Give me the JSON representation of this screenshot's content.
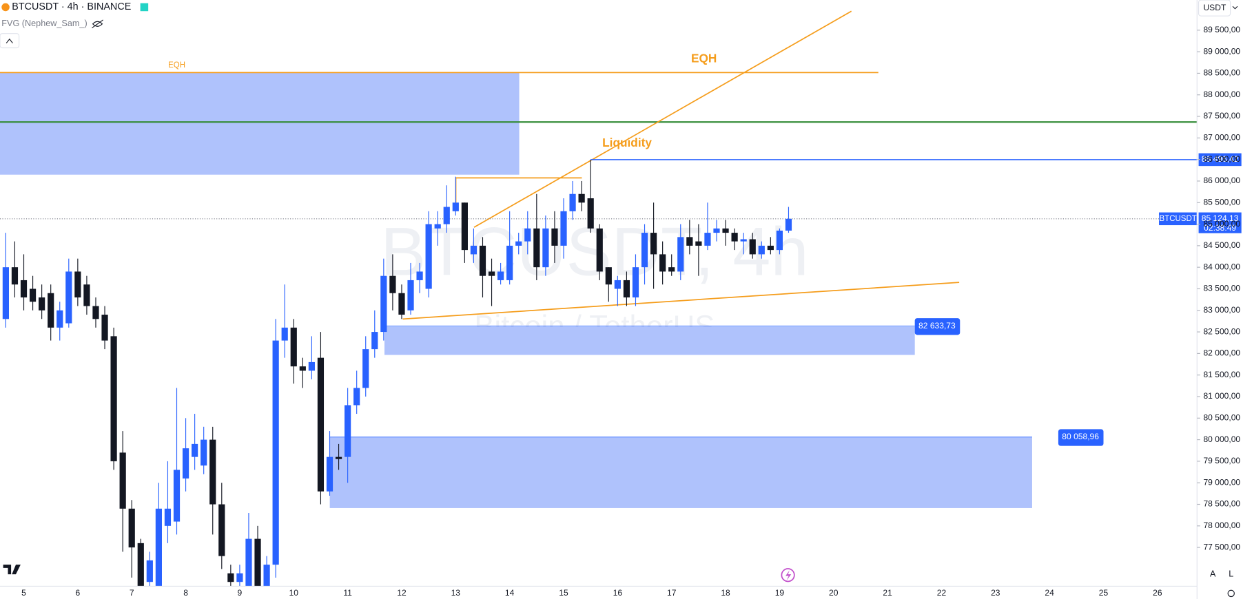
{
  "header": {
    "symbol": "BTCUSDT · 4h · BINANCE",
    "indicator": "FVG (Nephew_Sam_)",
    "currency": "USDT"
  },
  "watermark": {
    "main": "BTCUSDT, 4h",
    "sub": "Bitcoin / TetherUS"
  },
  "annotations": {
    "eqh_small": "EQH",
    "eqh": "EQH",
    "liquidity": "Liquidity"
  },
  "price_labels": [
    {
      "value": 86496.42,
      "label": "86 496,42"
    },
    {
      "value": 82633.73,
      "label": "82 633,73"
    },
    {
      "value": 80058.96,
      "label": "80 058,96"
    }
  ],
  "current_price": {
    "symbol": "BTCUSDT",
    "price": {
      "value": 85124.13,
      "label": "85 124,13"
    },
    "countdown": "02:38:49"
  },
  "scale_buttons": [
    "A",
    "L"
  ],
  "chart_data": {
    "type": "candlestick",
    "up_color": "#2962ff",
    "down_color": "#131722",
    "dates": [
      "5",
      "6",
      "7",
      "8",
      "9",
      "10",
      "11",
      "12",
      "13",
      "14",
      "15",
      "16",
      "17",
      "18",
      "19",
      "20",
      "21",
      "22",
      "23",
      "24",
      "25",
      "26"
    ],
    "open": [
      82800,
      84000,
      83700,
      83500,
      83300,
      83400,
      82600,
      82700,
      83900,
      83600,
      83100,
      82900,
      82400,
      79700,
      78400,
      77600,
      76700,
      76500,
      78000,
      78100,
      79100,
      79600,
      79400,
      80000,
      78500,
      76900,
      76700,
      76400,
      77700,
      76500,
      77100,
      82300,
      82600,
      81700,
      81600,
      81900,
      78800,
      79600,
      79600,
      80800,
      81200,
      82100,
      82500,
      83800,
      83400,
      83000,
      83700,
      83500,
      84900,
      85000,
      85300,
      85500,
      84300,
      84500,
      83900,
      83700,
      83700,
      84500,
      84600,
      84900,
      84000,
      84900,
      84500,
      85300,
      85700,
      85600,
      84900,
      84000,
      83500,
      83700,
      83300,
      84000,
      84800,
      84300,
      84000,
      83900,
      84700,
      84600,
      84500,
      84800,
      84900,
      84800,
      84600,
      84650,
      84300,
      84500,
      84400,
      84850
    ],
    "high": [
      84800,
      84600,
      84300,
      83800,
      83600,
      83600,
      83200,
      84200,
      84200,
      83800,
      83300,
      83100,
      82600,
      80200,
      78600,
      77700,
      77400,
      79000,
      79500,
      81200,
      80500,
      80600,
      80300,
      80300,
      79000,
      77100,
      77100,
      78300,
      78000,
      77300,
      82800,
      83600,
      82800,
      81900,
      82400,
      82500,
      80200,
      79900,
      81200,
      81600,
      82400,
      83000,
      84200,
      84300,
      83600,
      84100,
      84100,
      85300,
      85300,
      85900,
      86100,
      85500,
      84900,
      84700,
      84200,
      84100,
      85300,
      84800,
      85300,
      85700,
      85200,
      85300,
      85600,
      86000,
      86000,
      86496,
      85000,
      84000,
      83800,
      83900,
      84300,
      85000,
      85500,
      84600,
      84300,
      85000,
      85100,
      85000,
      85500,
      85100,
      85100,
      84900,
      84800,
      84800,
      84600,
      84700,
      84900,
      85400
    ],
    "low": [
      82600,
      83300,
      83000,
      83000,
      82800,
      82300,
      82300,
      82600,
      83100,
      82900,
      82600,
      82100,
      79300,
      77400,
      76800,
      76500,
      76500,
      76300,
      77600,
      77800,
      78800,
      79300,
      79200,
      77800,
      77000,
      76500,
      76500,
      76300,
      76400,
      76400,
      76800,
      81900,
      81300,
      81200,
      81400,
      78500,
      78700,
      79300,
      79000,
      80600,
      81000,
      81900,
      82300,
      83000,
      82800,
      82900,
      83400,
      83300,
      84500,
      84800,
      85200,
      84100,
      84100,
      83300,
      83100,
      83600,
      83600,
      84300,
      84300,
      83700,
      83800,
      84100,
      84200,
      85100,
      85300,
      84800,
      83700,
      83200,
      83100,
      83100,
      83100,
      83600,
      83500,
      83600,
      83800,
      83700,
      84300,
      83800,
      84400,
      84600,
      84500,
      84400,
      84300,
      84200,
      84200,
      84300,
      84300,
      84800
    ],
    "close": [
      84000,
      83600,
      83300,
      83200,
      83000,
      82600,
      83000,
      83900,
      83300,
      83100,
      82800,
      82300,
      79500,
      78400,
      77500,
      76600,
      77200,
      78400,
      78400,
      79300,
      79800,
      79900,
      80000,
      78500,
      77300,
      76700,
      76900,
      77700,
      76500,
      77100,
      82300,
      82600,
      81700,
      81600,
      81800,
      78800,
      79600,
      79550,
      80800,
      81200,
      82100,
      82500,
      83800,
      83400,
      82900,
      83700,
      83900,
      85000,
      85000,
      85400,
      85500,
      84400,
      84500,
      83800,
      83800,
      83900,
      84500,
      84600,
      84900,
      84000,
      84900,
      84500,
      85300,
      85700,
      85500,
      84900,
      83900,
      83600,
      83700,
      83300,
      84000,
      84800,
      84300,
      83900,
      83900,
      84700,
      84500,
      84500,
      84800,
      84900,
      84800,
      84600,
      84650,
      84300,
      84500,
      84400,
      84850,
      85124.13
    ],
    "ylim": [
      76600,
      90200
    ],
    "yticks": [
      {
        "value": 77500,
        "label": "77 500,00"
      },
      {
        "value": 78000,
        "label": "78 000,00"
      },
      {
        "value": 78500,
        "label": "78 500,00"
      },
      {
        "value": 79000,
        "label": "79 000,00"
      },
      {
        "value": 79500,
        "label": "79 500,00"
      },
      {
        "value": 80000,
        "label": "80 000,00"
      },
      {
        "value": 80500,
        "label": "80 500,00"
      },
      {
        "value": 81000,
        "label": "81 000,00"
      },
      {
        "value": 81500,
        "label": "81 500,00"
      },
      {
        "value": 82000,
        "label": "82 000,00"
      },
      {
        "value": 82500,
        "label": "82 500,00"
      },
      {
        "value": 83000,
        "label": "83 000,00"
      },
      {
        "value": 83500,
        "label": "83 500,00"
      },
      {
        "value": 84000,
        "label": "84 000,00"
      },
      {
        "value": 84500,
        "label": "84 500,00"
      },
      {
        "value": 85000,
        "label": "85 000,00"
      },
      {
        "value": 85500,
        "label": "85 500,00"
      },
      {
        "value": 86000,
        "label": "86 000,00"
      },
      {
        "value": 86500,
        "label": "86 500,00"
      },
      {
        "value": 87000,
        "label": "87 000,00"
      },
      {
        "value": 87500,
        "label": "87 500,00"
      },
      {
        "value": 88000,
        "label": "88 000,00"
      },
      {
        "value": 88500,
        "label": "88 500,00"
      },
      {
        "value": 89000,
        "label": "89 000,00"
      },
      {
        "value": 89500,
        "label": "89 500,00"
      }
    ]
  }
}
